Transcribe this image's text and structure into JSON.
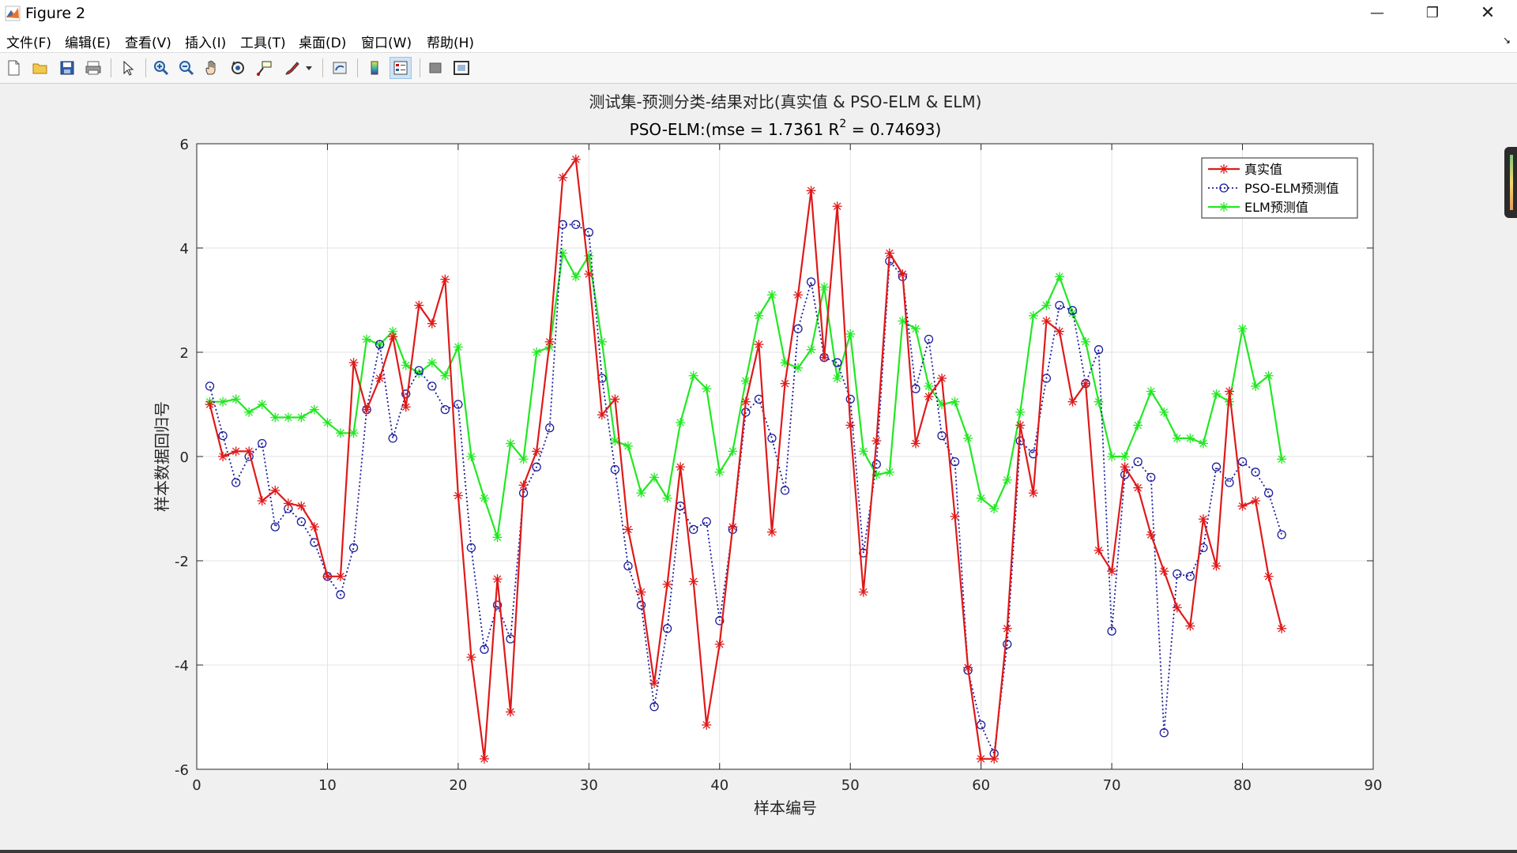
{
  "window": {
    "title": "Figure 2"
  },
  "menu": [
    "文件(F)",
    "编辑(E)",
    "查看(V)",
    "插入(I)",
    "工具(T)",
    "桌面(D)",
    "窗口(W)",
    "帮助(H)"
  ],
  "toolbar": {
    "icons": [
      "new-figure-icon",
      "open-file-icon",
      "save-icon",
      "print-icon",
      "pointer-icon",
      "zoom-in-icon",
      "zoom-out-icon",
      "pan-icon",
      "rotate-3d-icon",
      "data-cursor-icon",
      "brush-icon",
      "link-plot-icon",
      "colorbar-icon",
      "legend-icon",
      "hide-plot-tools-icon",
      "show-plot-tools-icon"
    ]
  },
  "chart_data": {
    "type": "line",
    "title_line1": "测试集-预测分类-结果对比(真实值 & PSO-ELM & ELM)",
    "title_line2_pre": "PSO-ELM:(mse = 1.7361 R",
    "title_line2_sup": "2",
    "title_line2_post": " = 0.74693)",
    "xlabel": "样本编号",
    "ylabel": "样本数据回归号",
    "xlim": [
      0,
      90
    ],
    "ylim": [
      -6,
      6
    ],
    "xticks": [
      0,
      10,
      20,
      30,
      40,
      50,
      60,
      70,
      80,
      90
    ],
    "yticks": [
      -6,
      -4,
      -2,
      0,
      2,
      4,
      6
    ],
    "grid": true,
    "legend_position": "top-right",
    "x": [
      1,
      2,
      3,
      4,
      5,
      6,
      7,
      8,
      9,
      10,
      11,
      12,
      13,
      14,
      15,
      16,
      17,
      18,
      19,
      20,
      21,
      22,
      23,
      24,
      25,
      26,
      27,
      28,
      29,
      30,
      31,
      32,
      33,
      34,
      35,
      36,
      37,
      38,
      39,
      40,
      41,
      42,
      43,
      44,
      45,
      46,
      47,
      48,
      49,
      50,
      51,
      52,
      53,
      54,
      55,
      56,
      57,
      58,
      59,
      60,
      61,
      62,
      63,
      64,
      65,
      66,
      67,
      68,
      69,
      70,
      71,
      72,
      73,
      74,
      75,
      76,
      77,
      78,
      79,
      80,
      81,
      82,
      83
    ],
    "series": [
      {
        "name": "真实值",
        "color": "#e01919",
        "marker": "star",
        "line": "solid",
        "values": [
          1.0,
          0.0,
          0.1,
          0.1,
          -0.85,
          -0.65,
          -0.9,
          -0.95,
          -1.35,
          -2.3,
          -2.3,
          1.8,
          0.9,
          1.5,
          2.3,
          0.95,
          2.9,
          2.55,
          3.4,
          -0.75,
          -3.85,
          -5.8,
          -2.35,
          -4.9,
          -0.55,
          0.1,
          2.2,
          5.35,
          5.7,
          3.5,
          0.8,
          1.1,
          -1.4,
          -2.6,
          -4.35,
          -2.45,
          -0.2,
          -2.4,
          -5.15,
          -3.6,
          -1.35,
          1.05,
          2.15,
          -1.45,
          1.4,
          3.1,
          5.1,
          1.9,
          4.8,
          0.6,
          -2.6,
          0.3,
          3.9,
          3.5,
          0.25,
          1.15,
          1.5,
          -1.15,
          -4.05,
          -5.8,
          -5.8,
          -3.3,
          0.6,
          -0.7,
          2.6,
          2.4,
          1.05,
          1.4,
          -1.8,
          -2.2,
          -0.2,
          -0.6,
          -1.5,
          -2.2,
          -2.9,
          -3.25,
          -1.2,
          -2.1,
          1.25,
          -0.95,
          -0.85,
          -2.3,
          -3.3
        ]
      },
      {
        "name": "PSO-ELM预测值",
        "color": "#1c1c9c",
        "marker": "circle",
        "line": "dotted",
        "values": [
          1.35,
          0.4,
          -0.5,
          0.0,
          0.25,
          -1.35,
          -1.0,
          -1.25,
          -1.65,
          -2.3,
          -2.65,
          -1.75,
          0.9,
          2.15,
          0.35,
          1.2,
          1.65,
          1.35,
          0.9,
          1.0,
          -1.75,
          -3.7,
          -2.85,
          -3.5,
          -0.7,
          -0.2,
          0.55,
          4.45,
          4.45,
          4.3,
          1.5,
          -0.25,
          -2.1,
          -2.85,
          -4.8,
          -3.3,
          -0.95,
          -1.4,
          -1.25,
          -3.15,
          -1.4,
          0.85,
          1.1,
          0.35,
          -0.65,
          2.45,
          3.35,
          1.9,
          1.8,
          1.1,
          -1.85,
          -0.15,
          3.75,
          3.45,
          1.3,
          2.25,
          0.4,
          -0.1,
          -4.1,
          -5.15,
          -5.7,
          -3.6,
          0.3,
          0.05,
          1.5,
          2.9,
          2.8,
          1.4,
          2.05,
          -3.35,
          -0.35,
          -0.1,
          -0.4,
          -5.3,
          -2.25,
          -2.3,
          -1.75,
          -0.2,
          -0.5,
          -0.1,
          -0.3,
          -0.7,
          -1.5
        ]
      },
      {
        "name": "ELM预测值",
        "color": "#22e822",
        "marker": "star",
        "line": "solid",
        "values": [
          1.05,
          1.05,
          1.1,
          0.85,
          1.0,
          0.75,
          0.75,
          0.75,
          0.9,
          0.65,
          0.45,
          0.45,
          2.25,
          2.15,
          2.4,
          1.75,
          1.6,
          1.8,
          1.55,
          2.1,
          0.0,
          -0.8,
          -1.55,
          0.25,
          -0.05,
          2.0,
          2.1,
          3.9,
          3.45,
          3.85,
          2.2,
          0.3,
          0.2,
          -0.7,
          -0.4,
          -0.8,
          0.65,
          1.55,
          1.3,
          -0.3,
          0.1,
          1.45,
          2.7,
          3.1,
          1.8,
          1.7,
          2.05,
          3.25,
          1.5,
          2.35,
          0.1,
          -0.35,
          -0.3,
          2.6,
          2.45,
          1.35,
          1.0,
          1.05,
          0.35,
          -0.8,
          -1.0,
          -0.45,
          0.85,
          2.7,
          2.9,
          3.45,
          2.75,
          2.2,
          1.05,
          0.0,
          0.0,
          0.6,
          1.25,
          0.85,
          0.35,
          0.35,
          0.25,
          1.2,
          1.05,
          2.45,
          1.35,
          1.55,
          -0.05
        ]
      }
    ]
  }
}
